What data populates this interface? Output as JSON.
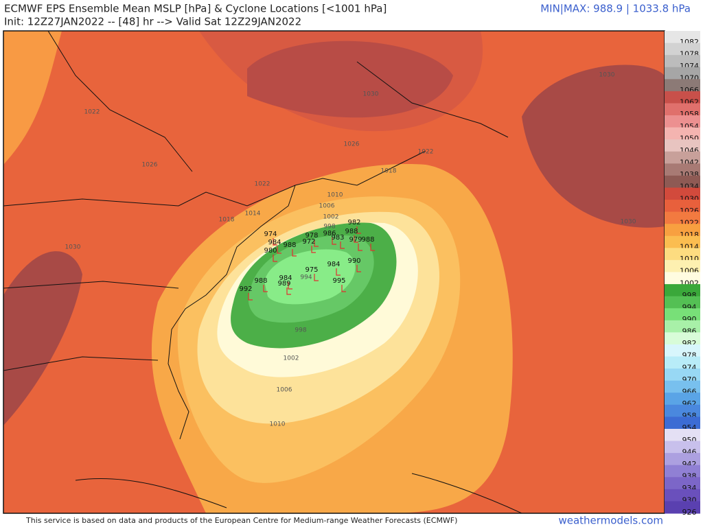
{
  "header": {
    "title": "ECMWF EPS Ensemble Mean MSLP [hPa] & Cyclone Locations [<1001 hPa]",
    "init": "Init: 12Z27JAN2022 -- [48] hr --> Valid Sat 12Z29JAN2022",
    "minmax": "MIN|MAX: 988.9 | 1033.8 hPa"
  },
  "colorbar": {
    "labels": [
      "1082",
      "1078",
      "1074",
      "1070",
      "1066",
      "1062",
      "1058",
      "1054",
      "1050",
      "1046",
      "1042",
      "1038",
      "1034",
      "1030",
      "1026",
      "1022",
      "1018",
      "1014",
      "1010",
      "1006",
      "1002",
      "998",
      "994",
      "990",
      "986",
      "982",
      "978",
      "974",
      "970",
      "966",
      "962",
      "958",
      "954",
      "950",
      "946",
      "942",
      "938",
      "934",
      "930",
      "926"
    ],
    "colors": [
      "#e6e6e6",
      "#d2d2d2",
      "#bcbcbc",
      "#a6a6a6",
      "#8c7a76",
      "#c8504a",
      "#e0706c",
      "#ec9090",
      "#f4b4b0",
      "#e8c4c0",
      "#c8a09a",
      "#a87a74",
      "#8e5a54",
      "#d24a3c",
      "#e8603c",
      "#f27a40",
      "#f8a040",
      "#fbbd50",
      "#fddc80",
      "#fdf0b0",
      "#fffce0",
      "#3aa83a",
      "#54c054",
      "#78e078",
      "#a8f0a8",
      "#d8fcd8",
      "#d8f6fc",
      "#b8ecf8",
      "#98d8f4",
      "#78c0ee",
      "#5aa4e6",
      "#4a88de",
      "#3c6cd4",
      "#e4e0f4",
      "#c8c0ec",
      "#aca0e0",
      "#9080d4",
      "#7c66c8",
      "#6a50bc",
      "#5a40b0"
    ]
  },
  "contour_labels": [
    "1022",
    "1026",
    "1030",
    "1026",
    "1022",
    "1018",
    "1022",
    "1014",
    "1018",
    "1010",
    "1006",
    "1002",
    "998",
    "1030",
    "1030",
    "1030",
    "998",
    "1002",
    "1006",
    "1010",
    "994"
  ],
  "cyclone_labels": [
    "982",
    "988",
    "974",
    "984",
    "988",
    "978",
    "986",
    "972",
    "983",
    "979",
    "988",
    "980",
    "975",
    "984",
    "990",
    "992",
    "988",
    "989",
    "995",
    "984"
  ],
  "footer": {
    "disclaimer": "This service is based on data and products of the European Centre for Medium-range Weather Forecasts (ECMWF)",
    "site": "weathermodels.com"
  }
}
